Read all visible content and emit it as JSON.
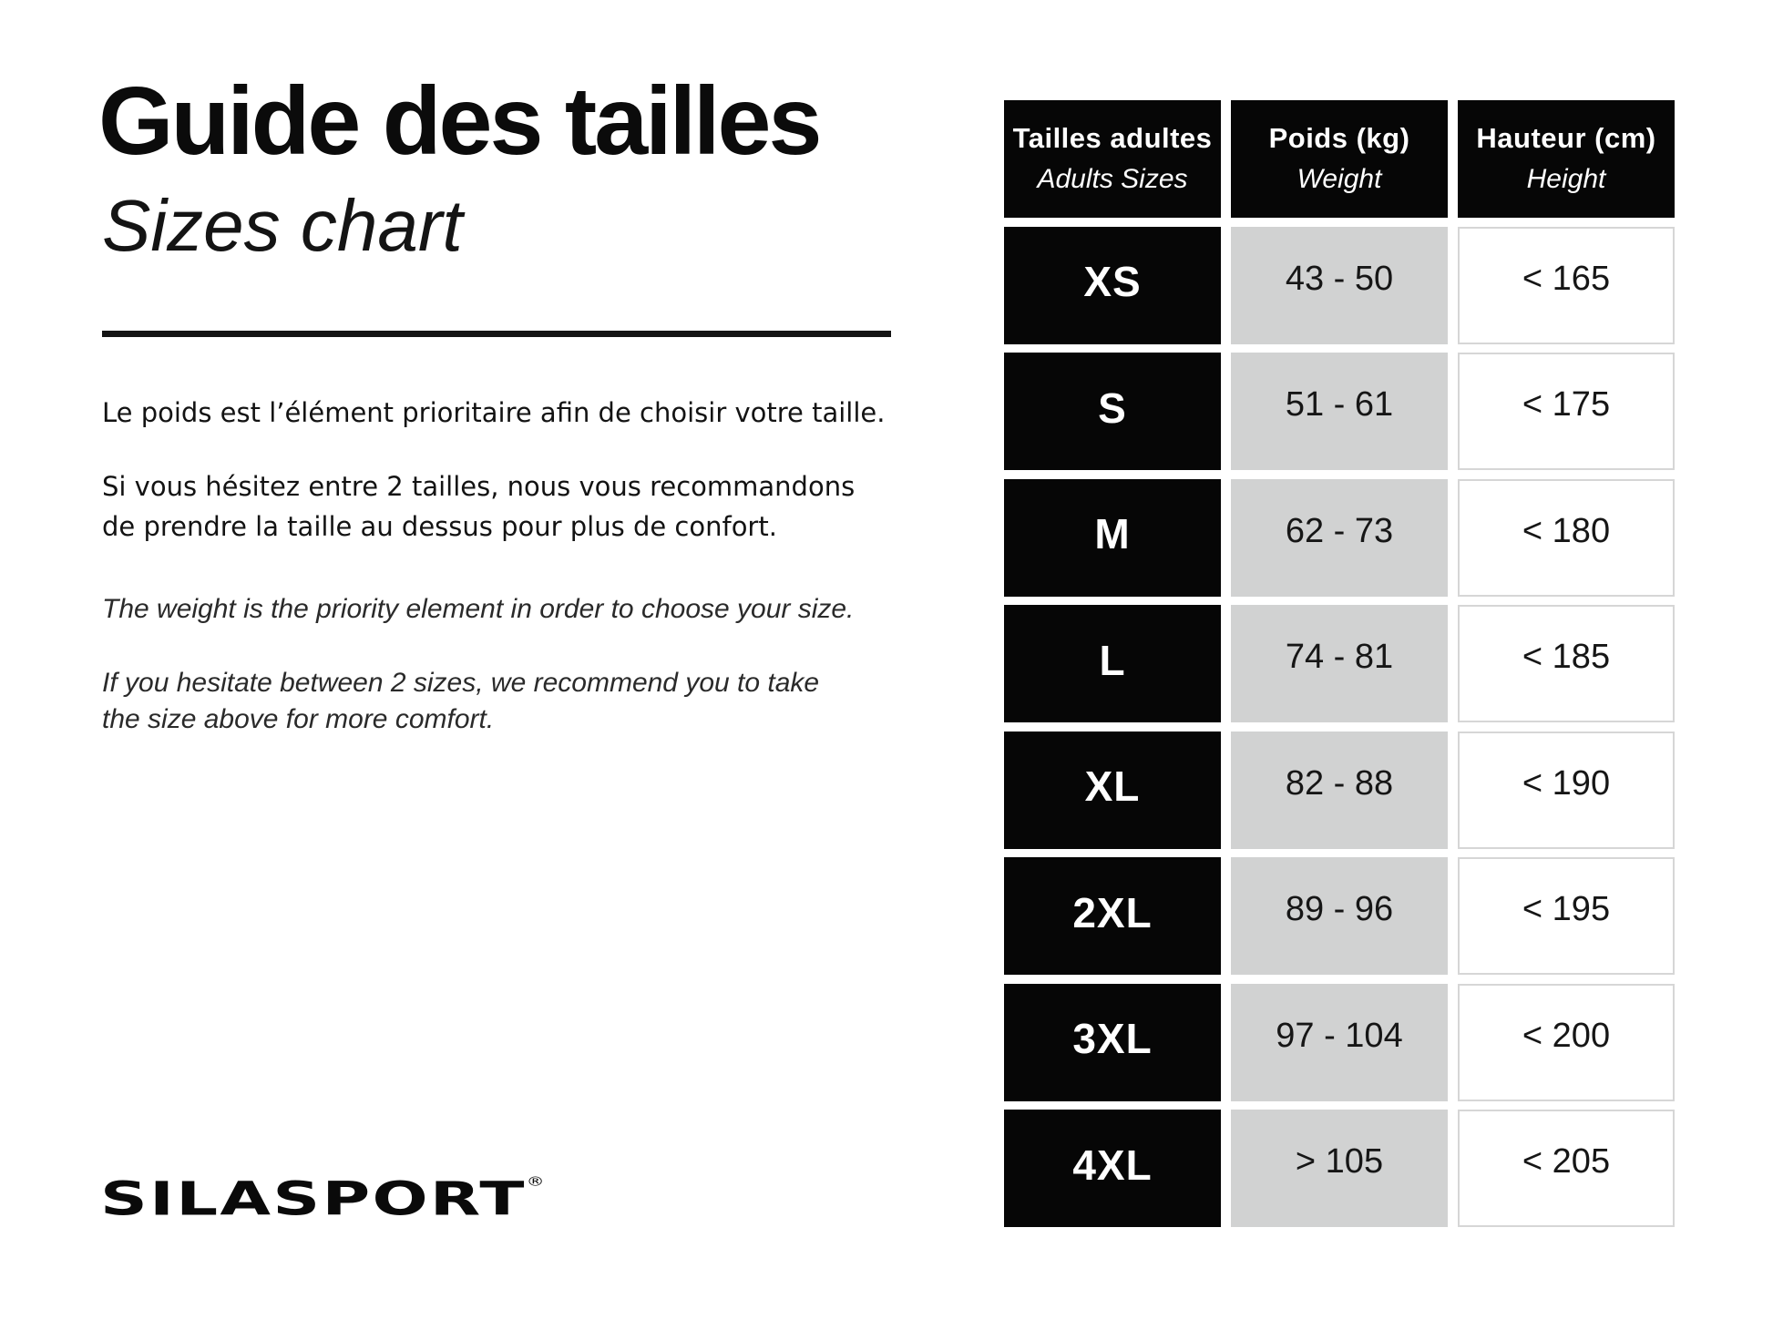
{
  "header": {
    "title_fr": "Guide des tailles",
    "title_en": "Sizes chart"
  },
  "intro": {
    "fr_p1": "Le poids est l’élément prioritaire afin de choisir votre taille.",
    "fr_p2_l1": "Si vous hésitez entre 2 tailles, nous vous recommandons",
    "fr_p2_l2": "de prendre la taille au dessus pour plus de confort.",
    "en_p1": "The weight is the priority element in order to choose your size.",
    "en_p2_l1": "If you hesitate between 2 sizes, we recommend you to take",
    "en_p2_l2": "the size above for more comfort."
  },
  "size_table": {
    "columns": [
      {
        "label_fr": "Tailles adultes",
        "label_en": "Adults Sizes"
      },
      {
        "label_fr": "Poids (kg)",
        "label_en": "Weight"
      },
      {
        "label_fr": "Hauteur (cm)",
        "label_en": "Height"
      }
    ],
    "rows": [
      {
        "size": "XS",
        "weight": "43 - 50",
        "height": "< 165"
      },
      {
        "size": "S",
        "weight": "51 - 61",
        "height": "< 175"
      },
      {
        "size": "M",
        "weight": "62 - 73",
        "height": "< 180"
      },
      {
        "size": "L",
        "weight": "74 - 81",
        "height": "< 185"
      },
      {
        "size": "XL",
        "weight": "82 - 88",
        "height": "< 190"
      },
      {
        "size": "2XL",
        "weight": "89 - 96",
        "height": "< 195"
      },
      {
        "size": "3XL",
        "weight": "97 - 104",
        "height": "< 200"
      },
      {
        "size": "4XL",
        "weight": "> 105",
        "height": "< 205"
      }
    ]
  },
  "footer": {
    "logo_text": "SILASPORT",
    "logo_reg": "®"
  },
  "colors": {
    "table_black": "#060606",
    "cell_gray": "#d1d2d2",
    "cell_border_gray": "#d6d6d6",
    "text_black": "#111111"
  }
}
